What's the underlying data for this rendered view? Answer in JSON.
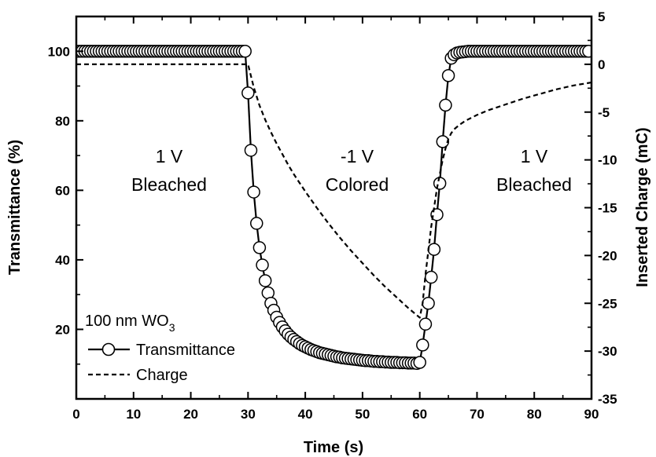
{
  "chart_data": {
    "type": "line",
    "title": "",
    "xlabel": "Time (s)",
    "ylabel_left": "Transmittance (%)",
    "ylabel_right": "Inserted Charge (mC)",
    "xlim": [
      0,
      90
    ],
    "ylim_left": [
      0,
      110
    ],
    "ylim_right": [
      -35,
      5
    ],
    "x_ticks": [
      "0",
      "10",
      "20",
      "30",
      "40",
      "50",
      "60",
      "70",
      "80",
      "90"
    ],
    "y_left_ticks": [
      "20",
      "40",
      "60",
      "80",
      "100"
    ],
    "y_right_ticks": [
      "5",
      "0",
      "-5",
      "-10",
      "-15",
      "-20",
      "-25",
      "-30",
      "-35"
    ],
    "grid": false,
    "legend_position": "bottom-left",
    "legend_title": "100 nm WO",
    "legend_title_subscript": "3",
    "annotations": [
      {
        "line1": "1 V",
        "line2": "Bleached"
      },
      {
        "line1": "-1 V",
        "line2": "Colored"
      },
      {
        "line1": "1 V",
        "line2": "Bleached"
      }
    ],
    "series": [
      {
        "name": "Transmittance",
        "axis": "left",
        "style": "line-with-open-circles",
        "points": [
          [
            0,
            100
          ],
          [
            0.5,
            100
          ],
          [
            1,
            100
          ],
          [
            1.5,
            100
          ],
          [
            2,
            100
          ],
          [
            2.5,
            100
          ],
          [
            3,
            100
          ],
          [
            3.5,
            100
          ],
          [
            4,
            100
          ],
          [
            4.5,
            100
          ],
          [
            5,
            100
          ],
          [
            5.5,
            100
          ],
          [
            6,
            100
          ],
          [
            6.5,
            100
          ],
          [
            7,
            100
          ],
          [
            7.5,
            100
          ],
          [
            8,
            100
          ],
          [
            8.5,
            100
          ],
          [
            9,
            100
          ],
          [
            9.5,
            100
          ],
          [
            10,
            100
          ],
          [
            10.5,
            100
          ],
          [
            11,
            100
          ],
          [
            11.5,
            100
          ],
          [
            12,
            100
          ],
          [
            12.5,
            100
          ],
          [
            13,
            100
          ],
          [
            13.5,
            100
          ],
          [
            14,
            100
          ],
          [
            14.5,
            100
          ],
          [
            15,
            100
          ],
          [
            15.5,
            100
          ],
          [
            16,
            100
          ],
          [
            16.5,
            100
          ],
          [
            17,
            100
          ],
          [
            17.5,
            100
          ],
          [
            18,
            100
          ],
          [
            18.5,
            100
          ],
          [
            19,
            100
          ],
          [
            19.5,
            100
          ],
          [
            20,
            100
          ],
          [
            20.5,
            100
          ],
          [
            21,
            100
          ],
          [
            21.5,
            100
          ],
          [
            22,
            100
          ],
          [
            22.5,
            100
          ],
          [
            23,
            100
          ],
          [
            23.5,
            100
          ],
          [
            24,
            100
          ],
          [
            24.5,
            100
          ],
          [
            25,
            100
          ],
          [
            25.5,
            100
          ],
          [
            26,
            100
          ],
          [
            26.5,
            100
          ],
          [
            27,
            100
          ],
          [
            27.5,
            100
          ],
          [
            28,
            100
          ],
          [
            28.5,
            100
          ],
          [
            29,
            100
          ],
          [
            29.5,
            100
          ],
          [
            30,
            88
          ],
          [
            30.5,
            71.5
          ],
          [
            31,
            59.5
          ],
          [
            31.5,
            50.5
          ],
          [
            32,
            43.5
          ],
          [
            32.5,
            38.5
          ],
          [
            33,
            34
          ],
          [
            33.5,
            30.5
          ],
          [
            34,
            27.5
          ],
          [
            34.5,
            25.5
          ],
          [
            35,
            23.5
          ],
          [
            35.5,
            22
          ],
          [
            36,
            20.7
          ],
          [
            36.5,
            19.6
          ],
          [
            37,
            18.6
          ],
          [
            37.5,
            17.8
          ],
          [
            38,
            17.1
          ],
          [
            38.5,
            16.5
          ],
          [
            39,
            15.9
          ],
          [
            39.5,
            15.4
          ],
          [
            40,
            15
          ],
          [
            40.5,
            14.6
          ],
          [
            41,
            14.2
          ],
          [
            41.5,
            13.9
          ],
          [
            42,
            13.6
          ],
          [
            42.5,
            13.3
          ],
          [
            43,
            13.1
          ],
          [
            43.5,
            12.9
          ],
          [
            44,
            12.7
          ],
          [
            44.5,
            12.5
          ],
          [
            45,
            12.3
          ],
          [
            45.5,
            12.1
          ],
          [
            46,
            12
          ],
          [
            46.5,
            11.8
          ],
          [
            47,
            11.7
          ],
          [
            47.5,
            11.6
          ],
          [
            48,
            11.5
          ],
          [
            48.5,
            11.4
          ],
          [
            49,
            11.3
          ],
          [
            49.5,
            11.2
          ],
          [
            50,
            11.1
          ],
          [
            50.5,
            11
          ],
          [
            51,
            11
          ],
          [
            51.5,
            10.9
          ],
          [
            52,
            10.8
          ],
          [
            52.5,
            10.8
          ],
          [
            53,
            10.7
          ],
          [
            53.5,
            10.7
          ],
          [
            54,
            10.6
          ],
          [
            54.5,
            10.6
          ],
          [
            55,
            10.5
          ],
          [
            55.5,
            10.5
          ],
          [
            56,
            10.5
          ],
          [
            56.5,
            10.4
          ],
          [
            57,
            10.4
          ],
          [
            57.5,
            10.4
          ],
          [
            58,
            10.3
          ],
          [
            58.5,
            10.3
          ],
          [
            59,
            10.3
          ],
          [
            59.5,
            10.2
          ],
          [
            60,
            10.5
          ],
          [
            60.5,
            15.5
          ],
          [
            61,
            21.5
          ],
          [
            61.5,
            27.5
          ],
          [
            62,
            35
          ],
          [
            62.5,
            43
          ],
          [
            63,
            53
          ],
          [
            63.5,
            62
          ],
          [
            64,
            74
          ],
          [
            64.5,
            84.5
          ],
          [
            65,
            93
          ],
          [
            65.5,
            98
          ],
          [
            66,
            99
          ],
          [
            66.5,
            99.5
          ],
          [
            67,
            99.7
          ],
          [
            67.5,
            99.8
          ],
          [
            68,
            99.9
          ],
          [
            68.5,
            100
          ],
          [
            69,
            100
          ],
          [
            69.5,
            100
          ],
          [
            70,
            100
          ],
          [
            70.5,
            100
          ],
          [
            71,
            100
          ],
          [
            71.5,
            100
          ],
          [
            72,
            100
          ],
          [
            72.5,
            100
          ],
          [
            73,
            100
          ],
          [
            73.5,
            100
          ],
          [
            74,
            100
          ],
          [
            74.5,
            100
          ],
          [
            75,
            100
          ],
          [
            75.5,
            100
          ],
          [
            76,
            100
          ],
          [
            76.5,
            100
          ],
          [
            77,
            100
          ],
          [
            77.5,
            100
          ],
          [
            78,
            100
          ],
          [
            78.5,
            100
          ],
          [
            79,
            100
          ],
          [
            79.5,
            100
          ],
          [
            80,
            100
          ],
          [
            80.5,
            100
          ],
          [
            81,
            100
          ],
          [
            81.5,
            100
          ],
          [
            82,
            100
          ],
          [
            82.5,
            100
          ],
          [
            83,
            100
          ],
          [
            83.5,
            100
          ],
          [
            84,
            100
          ],
          [
            84.5,
            100
          ],
          [
            85,
            100
          ],
          [
            85.5,
            100
          ],
          [
            86,
            100
          ],
          [
            86.5,
            100
          ],
          [
            87,
            100
          ],
          [
            87.5,
            100
          ],
          [
            88,
            100
          ],
          [
            88.5,
            100
          ],
          [
            89,
            100
          ],
          [
            89.5,
            100
          ]
        ]
      },
      {
        "name": "Charge",
        "axis": "right",
        "style": "dashed",
        "points": [
          [
            0,
            0
          ],
          [
            29.5,
            0
          ],
          [
            30,
            0
          ],
          [
            30.5,
            -1.2
          ],
          [
            31,
            -2.4
          ],
          [
            32,
            -4.3
          ],
          [
            33,
            -5.8
          ],
          [
            34,
            -7.1
          ],
          [
            35,
            -8.3
          ],
          [
            36,
            -9.4
          ],
          [
            37,
            -10.5
          ],
          [
            38,
            -11.5
          ],
          [
            39,
            -12.4
          ],
          [
            40,
            -13.3
          ],
          [
            42,
            -15
          ],
          [
            44,
            -16.6
          ],
          [
            46,
            -18.1
          ],
          [
            48,
            -19.5
          ],
          [
            50,
            -20.8
          ],
          [
            52,
            -22.1
          ],
          [
            54,
            -23.3
          ],
          [
            56,
            -24.4
          ],
          [
            58,
            -25.5
          ],
          [
            60,
            -26.5
          ],
          [
            60.5,
            -25
          ],
          [
            61,
            -22
          ],
          [
            61.5,
            -19.5
          ],
          [
            62,
            -17
          ],
          [
            62.5,
            -15
          ],
          [
            63,
            -13
          ],
          [
            63.5,
            -11.5
          ],
          [
            64,
            -10
          ],
          [
            64.5,
            -8.8
          ],
          [
            65,
            -7.8
          ],
          [
            65.5,
            -7.2
          ],
          [
            66,
            -6.8
          ],
          [
            67,
            -6.3
          ],
          [
            68,
            -5.9
          ],
          [
            70,
            -5.3
          ],
          [
            72,
            -4.8
          ],
          [
            75,
            -4.2
          ],
          [
            78,
            -3.6
          ],
          [
            81,
            -3.1
          ],
          [
            84,
            -2.6
          ],
          [
            87,
            -2.2
          ],
          [
            90,
            -1.9
          ]
        ]
      }
    ]
  }
}
